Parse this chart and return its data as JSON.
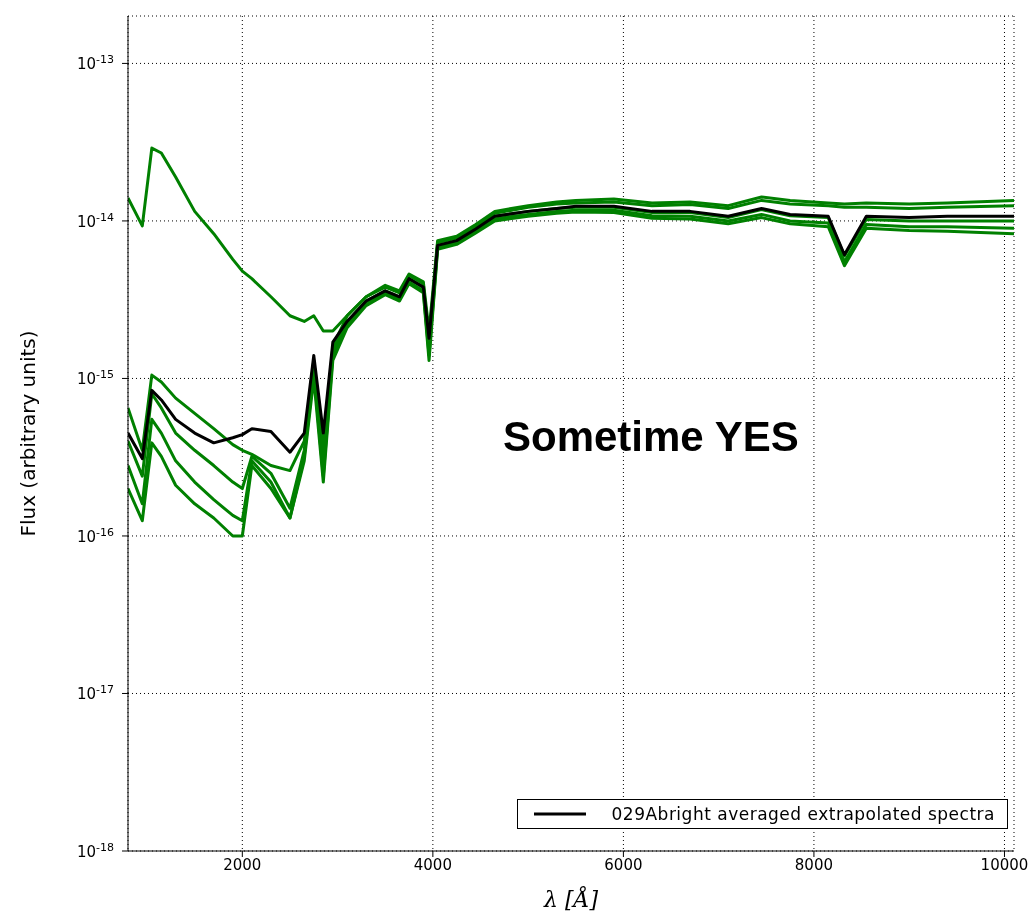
{
  "chart_data": {
    "type": "line",
    "xlabel": "λ [Å]",
    "ylabel": "Flux (arbitrary units)",
    "annotations": [
      "Sometime YES"
    ],
    "log": "y",
    "grid": true,
    "legend": "bottom right",
    "marker": "none",
    "line_style": "solid",
    "xlim": [
      800,
      10100
    ],
    "xticks": [
      2000,
      4000,
      6000,
      8000,
      10000
    ],
    "ylim": [
      1e-18,
      2e-13
    ],
    "yticks": [
      {
        "value": 1e-18,
        "label": "10$^{-18}$"
      },
      {
        "value": 1e-17,
        "label": "10$^{-17}$"
      },
      {
        "value": 1e-16,
        "label": "10$^{-16}$"
      },
      {
        "value": 1e-15,
        "label": "10$^{-15}$"
      },
      {
        "value": 1e-14,
        "label": "10$^{-14}$"
      },
      {
        "value": 1e-13,
        "label": "10$^{-13}$"
      }
    ],
    "x": [
      800,
      950,
      1050,
      1150,
      1300,
      1500,
      1700,
      1900,
      2000,
      2100,
      2300,
      2500,
      2650,
      2750,
      2850,
      2950,
      3100,
      3300,
      3500,
      3650,
      3750,
      3900,
      3960,
      4050,
      4250,
      4450,
      4650,
      5000,
      5300,
      5500,
      5900,
      6300,
      6700,
      7100,
      7450,
      7750,
      8150,
      8320,
      8550,
      9000,
      9400,
      10100
    ],
    "series": [
      {
        "color": "#008000",
        "values": [
          1.4e-14,
          9.3e-15,
          2.9e-14,
          2.7e-14,
          1.9e-14,
          1.15e-14,
          8.3e-15,
          5.7e-15,
          4.8e-15,
          4.3e-15,
          3.3e-15,
          2.5e-15,
          2.3e-15,
          2.5e-15,
          2e-15,
          2e-15,
          2.5e-15,
          3.3e-15,
          3.9e-15,
          3.6e-15,
          4.6e-15,
          4.1e-15,
          2e-15,
          7.5e-15,
          8e-15,
          9.5e-15,
          1.15e-14,
          1.25e-14,
          1.32e-14,
          1.35e-14,
          1.38e-14,
          1.3e-14,
          1.32e-14,
          1.25e-14,
          1.42e-14,
          1.35e-14,
          1.3e-14,
          1.28e-14,
          1.3e-14,
          1.28e-14,
          1.3e-14,
          1.35e-14
        ]
      },
      {
        "color": "#008000",
        "values": [
          6.5e-16,
          3.5e-16,
          1.05e-15,
          9.5e-16,
          7.5e-16,
          6e-16,
          4.8e-16,
          3.8e-16,
          3.5e-16,
          3.3e-16,
          2.8e-16,
          2.6e-16,
          4e-16,
          1.3e-15,
          3.5e-16,
          1.6e-15,
          2.5e-15,
          3.3e-15,
          3.8e-15,
          3.5e-15,
          4.5e-15,
          4e-15,
          1.7e-15,
          7.3e-15,
          7.8e-15,
          9.3e-15,
          1.12e-14,
          1.22e-14,
          1.28e-14,
          1.3e-14,
          1.32e-14,
          1.25e-14,
          1.27e-14,
          1.2e-14,
          1.35e-14,
          1.28e-14,
          1.25e-14,
          1.22e-14,
          1.22e-14,
          1.2e-14,
          1.22e-14,
          1.25e-14
        ]
      },
      {
        "color": "#008000",
        "values": [
          4e-16,
          2.4e-16,
          8e-16,
          6.5e-16,
          4.5e-16,
          3.5e-16,
          2.8e-16,
          2.2e-16,
          2e-16,
          3.2e-16,
          2.5e-16,
          1.5e-16,
          3.5e-16,
          1.2e-15,
          2.8e-16,
          1.5e-15,
          2.3e-15,
          3.1e-15,
          3.6e-15,
          3.3e-15,
          4.3e-15,
          3.8e-15,
          1.5e-15,
          7e-15,
          7.5e-15,
          8.9e-15,
          1.07e-14,
          1.15e-14,
          1.2e-14,
          1.22e-14,
          1.22e-14,
          1.13e-14,
          1.13e-14,
          1.05e-14,
          1.18e-14,
          1.08e-14,
          1.05e-14,
          6e-15,
          1.02e-14,
          1e-14,
          1e-14,
          1e-14
        ]
      },
      {
        "color": "#008000",
        "values": [
          2.8e-16,
          1.6e-16,
          5.5e-16,
          4.5e-16,
          3e-16,
          2.2e-16,
          1.7e-16,
          1.35e-16,
          1.25e-16,
          3e-16,
          2.2e-16,
          1.3e-16,
          3.2e-16,
          1.1e-15,
          2.4e-16,
          1.4e-15,
          2.2e-15,
          3e-15,
          3.5e-15,
          3.2e-15,
          4.1e-15,
          3.6e-15,
          1.4e-15,
          6.8e-15,
          7.3e-15,
          8.6e-15,
          1.03e-14,
          1.1e-14,
          1.15e-14,
          1.17e-14,
          1.17e-14,
          1.08e-14,
          1.07e-14,
          1e-14,
          1.1e-14,
          1e-14,
          9.7e-15,
          5.5e-15,
          9.5e-15,
          9.2e-15,
          9.2e-15,
          9e-15
        ]
      },
      {
        "color": "#008000",
        "values": [
          2e-16,
          1.25e-16,
          3.9e-16,
          3.2e-16,
          2.1e-16,
          1.6e-16,
          1.3e-16,
          1e-16,
          1e-16,
          2.8e-16,
          2e-16,
          1.3e-16,
          3e-16,
          1e-15,
          2.2e-16,
          1.3e-15,
          2.1e-15,
          2.9e-15,
          3.4e-15,
          3.1e-15,
          4e-15,
          3.5e-15,
          1.3e-15,
          6.6e-15,
          7.1e-15,
          8.4e-15,
          1e-14,
          1.07e-14,
          1.12e-14,
          1.14e-14,
          1.13e-14,
          1.04e-14,
          1.03e-14,
          9.6e-15,
          1.05e-14,
          9.6e-15,
          9.2e-15,
          5.2e-15,
          9e-15,
          8.7e-15,
          8.6e-15,
          8.3e-15
        ]
      },
      {
        "name": "029Abright averaged extrapolated spectra",
        "color": "#000000",
        "values": [
          4.5e-16,
          3.1e-16,
          8.4e-16,
          7.3e-16,
          5.5e-16,
          4.5e-16,
          3.9e-16,
          4.2e-16,
          4.4e-16,
          4.8e-16,
          4.6e-16,
          3.4e-16,
          4.5e-16,
          1.4e-15,
          4.5e-16,
          1.7e-15,
          2.3e-15,
          3.1e-15,
          3.6e-15,
          3.3e-15,
          4.3e-15,
          3.8e-15,
          1.8e-15,
          7e-15,
          7.5e-15,
          8.9e-15,
          1.07e-14,
          1.15e-14,
          1.2e-14,
          1.24e-14,
          1.24e-14,
          1.15e-14,
          1.15e-14,
          1.07e-14,
          1.2e-14,
          1.1e-14,
          1.07e-14,
          6.1e-15,
          1.07e-14,
          1.05e-14,
          1.07e-14,
          1.07e-14
        ]
      }
    ]
  }
}
